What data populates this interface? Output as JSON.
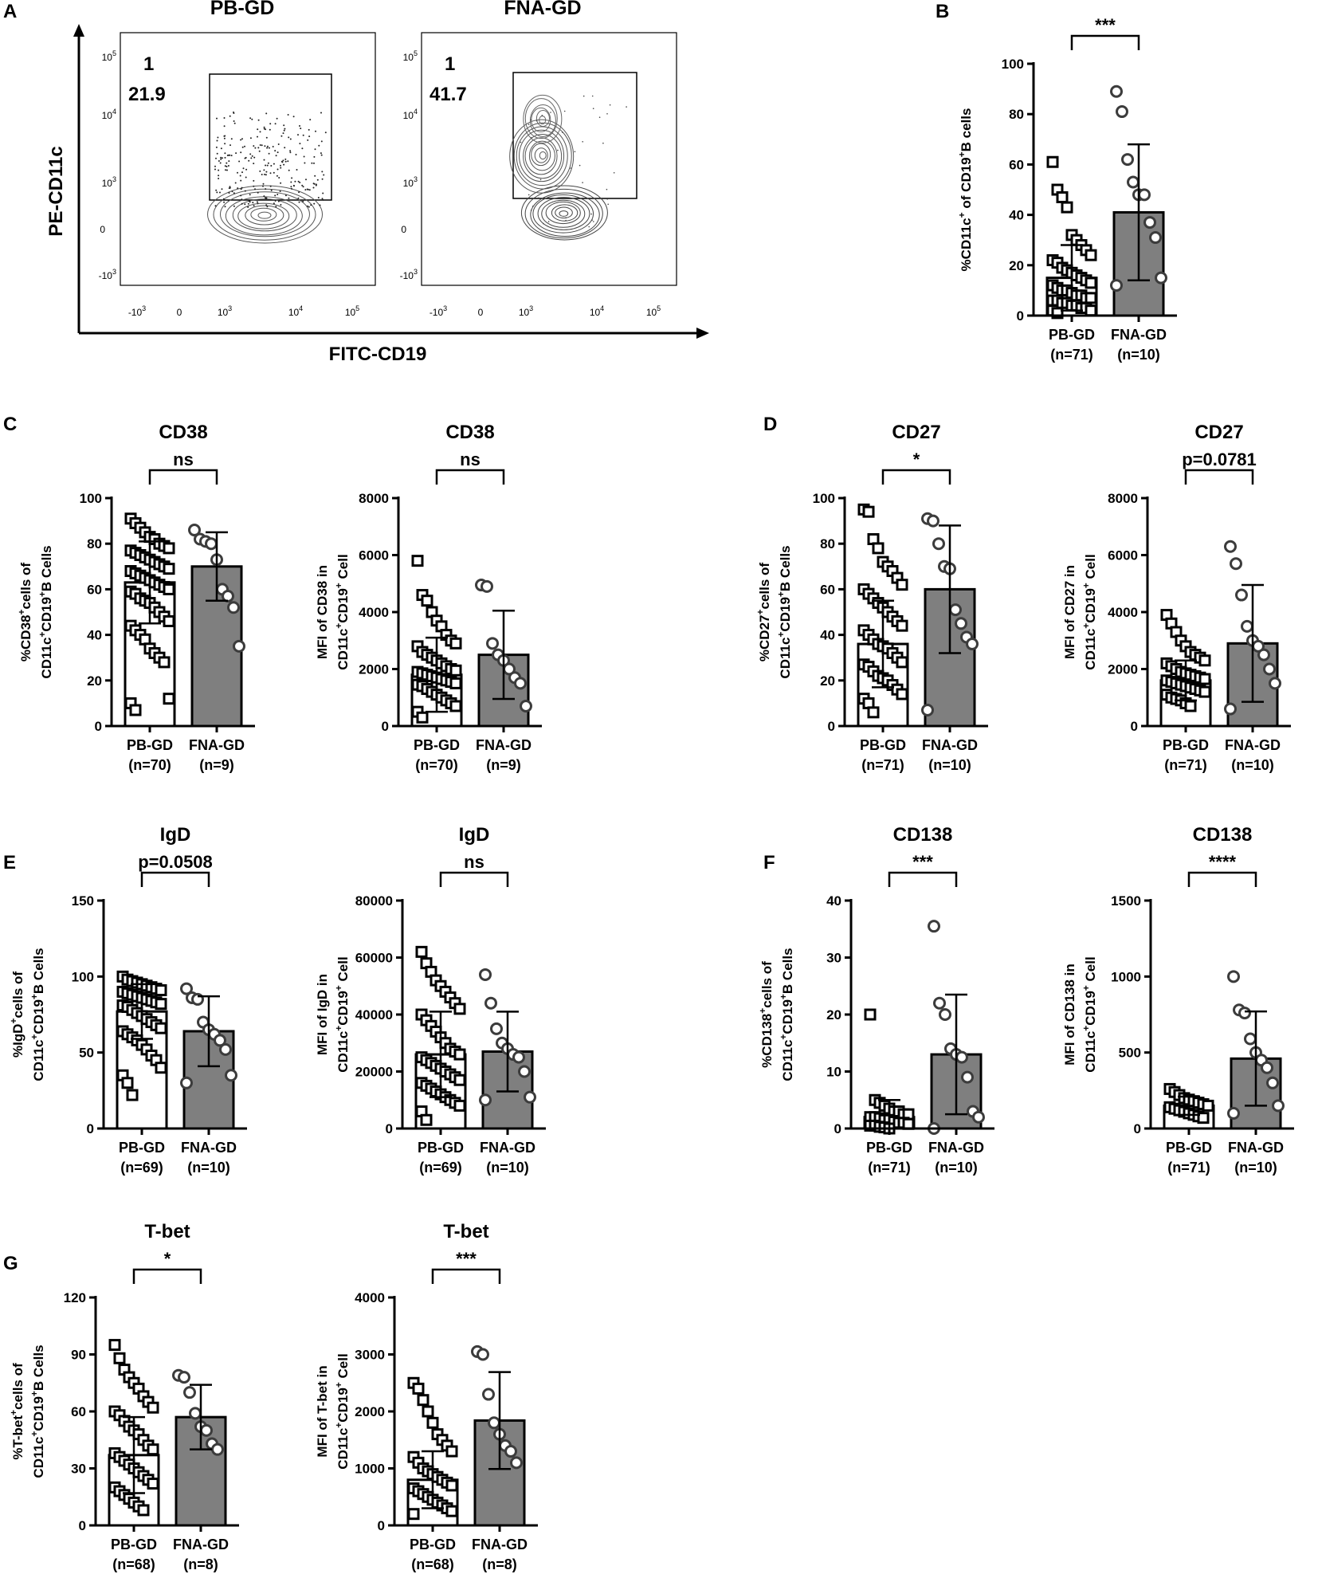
{
  "panelA": {
    "label": "A",
    "y_axis_label": "PE-CD11c",
    "x_axis_label": "FITC-CD19",
    "y_ticks": [
      "10^5",
      "10^4",
      "10^3",
      "0",
      "-10^3"
    ],
    "x_ticks": [
      "-10^3",
      "0",
      "10^3",
      "10^4",
      "10^5"
    ],
    "plots": [
      {
        "title": "PB-GD",
        "gate_line1": "1",
        "gate_line2": "21.9",
        "style": "dots"
      },
      {
        "title": "FNA-GD",
        "gate_line1": "1",
        "gate_line2": "41.7",
        "style": "contour"
      }
    ]
  },
  "colors": {
    "pb_bar": "#ffffff",
    "fna_bar": "#7f7f7f",
    "marker_edge": "#000000",
    "fna_marker_edge": "#3c3c3c"
  },
  "chart_data": [
    {
      "id": "B",
      "type": "bar",
      "panel_label": "B",
      "title": "",
      "ylabel_html": "%CD11c<sup>+</sup> of CD19<sup>+</sup>B cells",
      "ylabel_parts": [
        "%CD11c",
        "+",
        " of CD19",
        "+",
        "B cells"
      ],
      "ylim": [
        0,
        100
      ],
      "yticks": [
        "0",
        "20",
        "40",
        "60",
        "80",
        "100"
      ],
      "categories": [
        "PB-GD",
        "FNA-GD"
      ],
      "n_labels": [
        "(n=71)",
        "(n=10)"
      ],
      "means": [
        15,
        41
      ],
      "sd": [
        13,
        27
      ],
      "significance": "***",
      "points": [
        [
          61,
          50,
          47,
          43,
          32,
          30,
          28,
          26,
          24,
          22,
          21,
          19,
          18,
          17,
          16,
          15,
          14,
          13,
          12,
          11,
          10,
          10,
          9,
          8,
          8,
          7,
          7,
          6,
          6,
          5,
          5,
          4,
          4,
          3,
          3,
          2,
          2,
          1
        ],
        [
          89,
          81,
          62,
          53,
          48,
          48,
          37,
          31,
          15,
          12
        ]
      ]
    },
    {
      "id": "C1",
      "type": "bar",
      "panel_label": "C",
      "title": "CD38",
      "ylabel_lines": [
        [
          "%CD38",
          "+",
          "cells of"
        ],
        [
          "CD11c",
          "+",
          "CD19",
          "+",
          "B Cells"
        ]
      ],
      "ylim": [
        0,
        100
      ],
      "yticks": [
        "0",
        "20",
        "40",
        "60",
        "80",
        "100"
      ],
      "categories": [
        "PB-GD",
        "FNA-GD"
      ],
      "n_labels": [
        "(n=70)",
        "(n=9)"
      ],
      "means": [
        63,
        70
      ],
      "sd": [
        18,
        15
      ],
      "significance": "ns",
      "points": [
        [
          91,
          89,
          87,
          85,
          83,
          82,
          80,
          79,
          78,
          77,
          76,
          75,
          74,
          73,
          72,
          71,
          70,
          69,
          68,
          67,
          66,
          65,
          64,
          63,
          62,
          61,
          60,
          59,
          58,
          56,
          55,
          54,
          52,
          50,
          48,
          46,
          44,
          42,
          40,
          38,
          34,
          32,
          30,
          28,
          12,
          10,
          7
        ],
        [
          86,
          82,
          81,
          80,
          73,
          60,
          57,
          52,
          35
        ]
      ]
    },
    {
      "id": "C2",
      "type": "bar",
      "panel_label": "",
      "title": "CD38",
      "ylabel_lines": [
        [
          "MFI of CD38 in"
        ],
        [
          "CD11c",
          "+",
          "CD19",
          "+",
          " Cell"
        ]
      ],
      "ylim": [
        0,
        8000
      ],
      "yticks": [
        "0",
        "2000",
        "4000",
        "6000",
        "8000"
      ],
      "categories": [
        "PB-GD",
        "FNA-GD"
      ],
      "n_labels": [
        "(n=70)",
        "(n=9)"
      ],
      "means": [
        1800,
        2500
      ],
      "sd": [
        1300,
        1550
      ],
      "significance": "ns",
      "points": [
        [
          5800,
          4600,
          4400,
          4000,
          3700,
          3500,
          3200,
          3000,
          2900,
          2800,
          2600,
          2500,
          2400,
          2300,
          2200,
          2100,
          2000,
          1950,
          1900,
          1850,
          1800,
          1750,
          1700,
          1650,
          1600,
          1550,
          1500,
          1450,
          1400,
          1300,
          1200,
          1100,
          1000,
          900,
          800,
          700,
          500,
          300
        ],
        [
          4950,
          4900,
          2900,
          2500,
          2300,
          2000,
          1700,
          1500,
          700
        ]
      ]
    },
    {
      "id": "D1",
      "type": "bar",
      "panel_label": "D",
      "title": "CD27",
      "ylabel_lines": [
        [
          "%CD27",
          "+",
          "cells of"
        ],
        [
          "CD11c",
          "+",
          "CD19",
          "+",
          "B Cells"
        ]
      ],
      "ylim": [
        0,
        100
      ],
      "yticks": [
        "0",
        "20",
        "40",
        "60",
        "80",
        "100"
      ],
      "categories": [
        "PB-GD",
        "FNA-GD"
      ],
      "n_labels": [
        "(n=71)",
        "(n=10)"
      ],
      "means": [
        36,
        60
      ],
      "sd": [
        19,
        28
      ],
      "significance": "*",
      "points": [
        [
          95,
          94,
          82,
          78,
          72,
          70,
          68,
          65,
          62,
          60,
          58,
          56,
          54,
          52,
          50,
          48,
          46,
          44,
          42,
          40,
          38,
          36,
          35,
          34,
          32,
          30,
          28,
          27,
          26,
          24,
          22,
          21,
          20,
          18,
          16,
          14,
          12,
          10,
          6
        ],
        [
          91,
          90,
          80,
          70,
          69,
          51,
          45,
          39,
          36,
          7
        ]
      ]
    },
    {
      "id": "D2",
      "type": "bar",
      "panel_label": "",
      "title": "CD27",
      "ylabel_lines": [
        [
          "MFI of CD27 in"
        ],
        [
          "CD11c",
          "+",
          "CD19",
          "+",
          " Cell"
        ]
      ],
      "ylim": [
        0,
        8000
      ],
      "yticks": [
        "0",
        "2000",
        "4000",
        "6000",
        "8000"
      ],
      "categories": [
        "PB-GD",
        "FNA-GD"
      ],
      "n_labels": [
        "(n=71)",
        "(n=10)"
      ],
      "means": [
        1600,
        2900
      ],
      "sd": [
        700,
        2050
      ],
      "significance": "p=0.0781",
      "points": [
        [
          3900,
          3600,
          3300,
          3000,
          2800,
          2600,
          2500,
          2400,
          2300,
          2200,
          2100,
          2000,
          1900,
          1850,
          1800,
          1750,
          1700,
          1650,
          1600,
          1550,
          1500,
          1450,
          1400,
          1350,
          1300,
          1250,
          1200,
          1100,
          1000,
          950,
          900,
          800,
          700
        ],
        [
          6300,
          5700,
          4600,
          3500,
          3000,
          2800,
          2500,
          2000,
          1500,
          600
        ]
      ]
    },
    {
      "id": "E1",
      "type": "bar",
      "panel_label": "E",
      "title": "IgD",
      "ylabel_lines": [
        [
          "%IgD",
          "+",
          "cells of"
        ],
        [
          "CD11c",
          "+",
          "CD19",
          "+",
          "B Cells"
        ]
      ],
      "ylim": [
        0,
        150
      ],
      "yticks": [
        "0",
        "50",
        "100",
        "150"
      ],
      "categories": [
        "PB-GD",
        "FNA-GD"
      ],
      "n_labels": [
        "(n=69)",
        "(n=10)"
      ],
      "means": [
        77,
        64
      ],
      "sd": [
        18,
        23
      ],
      "significance": "p=0.0508",
      "points": [
        [
          100,
          98,
          97,
          96,
          95,
          94,
          93,
          92,
          91,
          90,
          89,
          88,
          87,
          86,
          85,
          84,
          83,
          82,
          81,
          80,
          78,
          76,
          74,
          72,
          70,
          68,
          66,
          64,
          62,
          60,
          58,
          55,
          52,
          48,
          45,
          40,
          35,
          30,
          22
        ],
        [
          92,
          86,
          85,
          70,
          65,
          62,
          58,
          52,
          35,
          30
        ]
      ]
    },
    {
      "id": "E2",
      "type": "bar",
      "panel_label": "",
      "title": "IgD",
      "ylabel_lines": [
        [
          "MFI of IgD in"
        ],
        [
          "CD11c",
          "+",
          "CD19",
          "+",
          " Cell"
        ]
      ],
      "ylim": [
        0,
        80000
      ],
      "yticks": [
        "0",
        "20000",
        "40000",
        "60000",
        "80000"
      ],
      "categories": [
        "PB-GD",
        "FNA-GD"
      ],
      "n_labels": [
        "(n=69)",
        "(n=10)"
      ],
      "means": [
        26000,
        27000
      ],
      "sd": [
        15000,
        14000
      ],
      "significance": "ns",
      "points": [
        [
          62000,
          58000,
          55000,
          52000,
          50000,
          48000,
          46000,
          44000,
          42000,
          40000,
          38000,
          36000,
          34000,
          32000,
          30000,
          28000,
          27000,
          26000,
          25000,
          24000,
          23000,
          22000,
          21000,
          20000,
          19000,
          18000,
          17000,
          16000,
          15000,
          14000,
          13000,
          12000,
          11000,
          10000,
          9000,
          8000,
          6000,
          3000
        ],
        [
          54000,
          44000,
          35000,
          30000,
          28000,
          26000,
          25000,
          20000,
          11000,
          10000
        ]
      ]
    },
    {
      "id": "F1",
      "type": "bar",
      "panel_label": "F",
      "title": "CD138",
      "ylabel_lines": [
        [
          "%CD138",
          "+",
          "cells of"
        ],
        [
          "CD11c",
          "+",
          "CD19",
          "+",
          "B Cells"
        ]
      ],
      "ylim": [
        0,
        40
      ],
      "yticks": [
        "0",
        "10",
        "20",
        "30",
        "40"
      ],
      "categories": [
        "PB-GD",
        "FNA-GD"
      ],
      "n_labels": [
        "(n=71)",
        "(n=10)"
      ],
      "means": [
        2,
        13
      ],
      "sd": [
        3,
        10.5
      ],
      "significance": "***",
      "points": [
        [
          20,
          5,
          4.5,
          4,
          3.5,
          3,
          3,
          2.5,
          2.5,
          2,
          2,
          1.8,
          1.5,
          1.5,
          1.2,
          1,
          1,
          0.8,
          0.5,
          0.5,
          0.3,
          0.2,
          0
        ],
        [
          35.5,
          22,
          20,
          14,
          13,
          12.5,
          9,
          3,
          2,
          0
        ]
      ]
    },
    {
      "id": "F2",
      "type": "bar",
      "panel_label": "",
      "title": "CD138",
      "ylabel_lines": [
        [
          "MFI of CD138 in"
        ],
        [
          "CD11c",
          "+",
          "CD19",
          "+",
          " Cell"
        ]
      ],
      "ylim": [
        0,
        1500
      ],
      "yticks": [
        "0",
        "500",
        "1000",
        "1500"
      ],
      "categories": [
        "PB-GD",
        "FNA-GD"
      ],
      "n_labels": [
        "(n=71)",
        "(n=10)"
      ],
      "means": [
        150,
        460
      ],
      "sd": [
        60,
        310
      ],
      "significance": "****",
      "points": [
        [
          260,
          240,
          220,
          200,
          190,
          180,
          170,
          160,
          150,
          140,
          130,
          120,
          110,
          100,
          90,
          80,
          70
        ],
        [
          1000,
          780,
          760,
          590,
          500,
          450,
          400,
          300,
          150,
          100
        ]
      ]
    },
    {
      "id": "G1",
      "type": "bar",
      "panel_label": "G",
      "title": "T-bet",
      "ylabel_lines": [
        [
          "%T-bet",
          "+",
          "cells of"
        ],
        [
          "CD11c",
          "+",
          "CD19",
          "+",
          "B Cells"
        ]
      ],
      "ylim": [
        0,
        120
      ],
      "yticks": [
        "0",
        "30",
        "60",
        "90",
        "120"
      ],
      "categories": [
        "PB-GD",
        "FNA-GD"
      ],
      "n_labels": [
        "(n=68)",
        "(n=8)"
      ],
      "means": [
        37,
        57
      ],
      "sd": [
        20,
        17
      ],
      "significance": "*",
      "points": [
        [
          95,
          88,
          82,
          78,
          75,
          72,
          68,
          65,
          62,
          60,
          58,
          55,
          52,
          50,
          48,
          45,
          42,
          40,
          38,
          36,
          34,
          32,
          30,
          28,
          26,
          24,
          22,
          20,
          18,
          16,
          14,
          12,
          10,
          8
        ],
        [
          79,
          78,
          70,
          59,
          52,
          50,
          43,
          40
        ]
      ]
    },
    {
      "id": "G2",
      "type": "bar",
      "panel_label": "",
      "title": "T-bet",
      "ylabel_lines": [
        [
          "MFI of T-bet in"
        ],
        [
          "CD11c",
          "+",
          "CD19",
          "+",
          " Cell"
        ]
      ],
      "ylim": [
        0,
        4000
      ],
      "yticks": [
        "0",
        "1000",
        "2000",
        "3000",
        "4000"
      ],
      "categories": [
        "PB-GD",
        "FNA-GD"
      ],
      "n_labels": [
        "(n=68)",
        "(n=8)"
      ],
      "means": [
        800,
        1840
      ],
      "sd": [
        500,
        850
      ],
      "significance": "***",
      "points": [
        [
          2500,
          2400,
          2200,
          2000,
          1800,
          1600,
          1500,
          1400,
          1300,
          1200,
          1100,
          1000,
          950,
          900,
          850,
          800,
          750,
          700,
          650,
          600,
          550,
          500,
          450,
          400,
          350,
          300,
          250,
          200
        ],
        [
          3050,
          3000,
          2300,
          1800,
          1600,
          1400,
          1300,
          1100
        ]
      ]
    }
  ]
}
